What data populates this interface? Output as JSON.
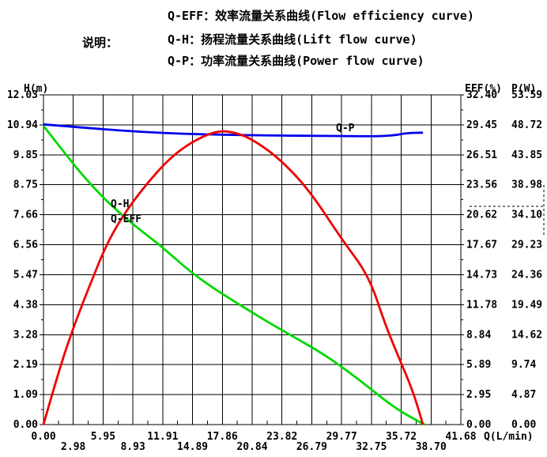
{
  "page": {
    "background": "#ffffff",
    "text_color": "#000000"
  },
  "legend": {
    "label": "说明：",
    "items": [
      {
        "key": "Q-EFF",
        "text": "Q-EFF：效率流量关系曲线(Flow efficiency curve)"
      },
      {
        "key": "Q-H",
        "text": "Q-H：扬程流量关系曲线(Lift flow curve)"
      },
      {
        "key": "Q-P",
        "text": "Q-P：功率流量关系曲线(Power flow curve)"
      }
    ]
  },
  "chart_data": {
    "type": "line",
    "legend_position": "top",
    "grid": true,
    "grid_color": "#000000",
    "x_axis": {
      "label": "Q(L/min)",
      "min": 0,
      "max": 41.68,
      "ticks": [
        "0.00",
        "2.98",
        "5.95",
        "8.93",
        "11.91",
        "14.89",
        "17.86",
        "20.84",
        "23.82",
        "26.79",
        "29.77",
        "32.75",
        "35.72",
        "38.70",
        "41.68"
      ]
    },
    "y_axis_left": {
      "label": "H(m)",
      "min": 0,
      "max": 12.03,
      "ticks_top_to_bottom": [
        "12.03",
        "10.94",
        "9.85",
        "8.75",
        "7.66",
        "6.56",
        "5.47",
        "4.38",
        "3.28",
        "2.19",
        "1.09",
        "0.00"
      ]
    },
    "y_axis_right_eff": {
      "label": "EFF(%)",
      "min": 0,
      "max": 32.4,
      "ticks_top_to_bottom": [
        "32.40",
        "29.45",
        "26.51",
        "23.56",
        "20.62",
        "17.67",
        "14.73",
        "11.78",
        "8.84",
        "5.89",
        "2.95",
        "0.00"
      ]
    },
    "y_axis_right_p": {
      "label": "P(W)",
      "min": 0,
      "max": 53.59,
      "ticks_top_to_bottom": [
        "53.59",
        "48.72",
        "43.85",
        "38.98",
        "34.10",
        "29.23",
        "24.36",
        "19.49",
        "14.62",
        "9.74",
        "4.87",
        "0.00"
      ]
    },
    "series": [
      {
        "name": "Q-H",
        "label": "Q-H",
        "axis": "h",
        "color": "#00d800",
        "points": [
          [
            0,
            10.9
          ],
          [
            2.2,
            9.87
          ],
          [
            4.3,
            8.92
          ],
          [
            7,
            7.9
          ],
          [
            10,
            7.0
          ],
          [
            11.6,
            6.56
          ],
          [
            15.4,
            5.34
          ],
          [
            20.5,
            4.16
          ],
          [
            24,
            3.4
          ],
          [
            28,
            2.58
          ],
          [
            31.5,
            1.65
          ],
          [
            35.1,
            0.59
          ],
          [
            38.05,
            0
          ]
        ]
      },
      {
        "name": "Q-P",
        "label": "Q-P",
        "axis": "p",
        "color": "#0000ee",
        "points": [
          [
            0,
            48.8
          ],
          [
            3,
            48.4
          ],
          [
            6,
            48.0
          ],
          [
            10,
            47.55
          ],
          [
            14,
            47.25
          ],
          [
            18,
            47.1
          ],
          [
            22,
            47.0
          ],
          [
            26,
            46.95
          ],
          [
            30,
            46.9
          ],
          [
            33,
            46.85
          ],
          [
            35,
            47.0
          ],
          [
            36.3,
            47.4
          ],
          [
            37.9,
            47.45
          ]
        ]
      },
      {
        "name": "Q-EFF",
        "label": "Q-EFF",
        "axis": "eff",
        "color": "#ee0000",
        "points": [
          [
            0,
            0
          ],
          [
            1.5,
            5.2
          ],
          [
            3.1,
            9.9
          ],
          [
            5.0,
            14.6
          ],
          [
            6.3,
            17.7
          ],
          [
            7.9,
            20.5
          ],
          [
            10,
            23.3
          ],
          [
            12.6,
            26.2
          ],
          [
            15,
            27.9
          ],
          [
            17.4,
            28.9
          ],
          [
            19.2,
            28.7
          ],
          [
            20.9,
            28.0
          ],
          [
            23.5,
            26.2
          ],
          [
            26.5,
            23.1
          ],
          [
            29.8,
            18.2
          ],
          [
            32.5,
            14.6
          ],
          [
            34.1,
            9.9
          ],
          [
            35.4,
            6.8
          ],
          [
            36.9,
            3.3
          ],
          [
            37.9,
            0
          ]
        ]
      }
    ]
  }
}
